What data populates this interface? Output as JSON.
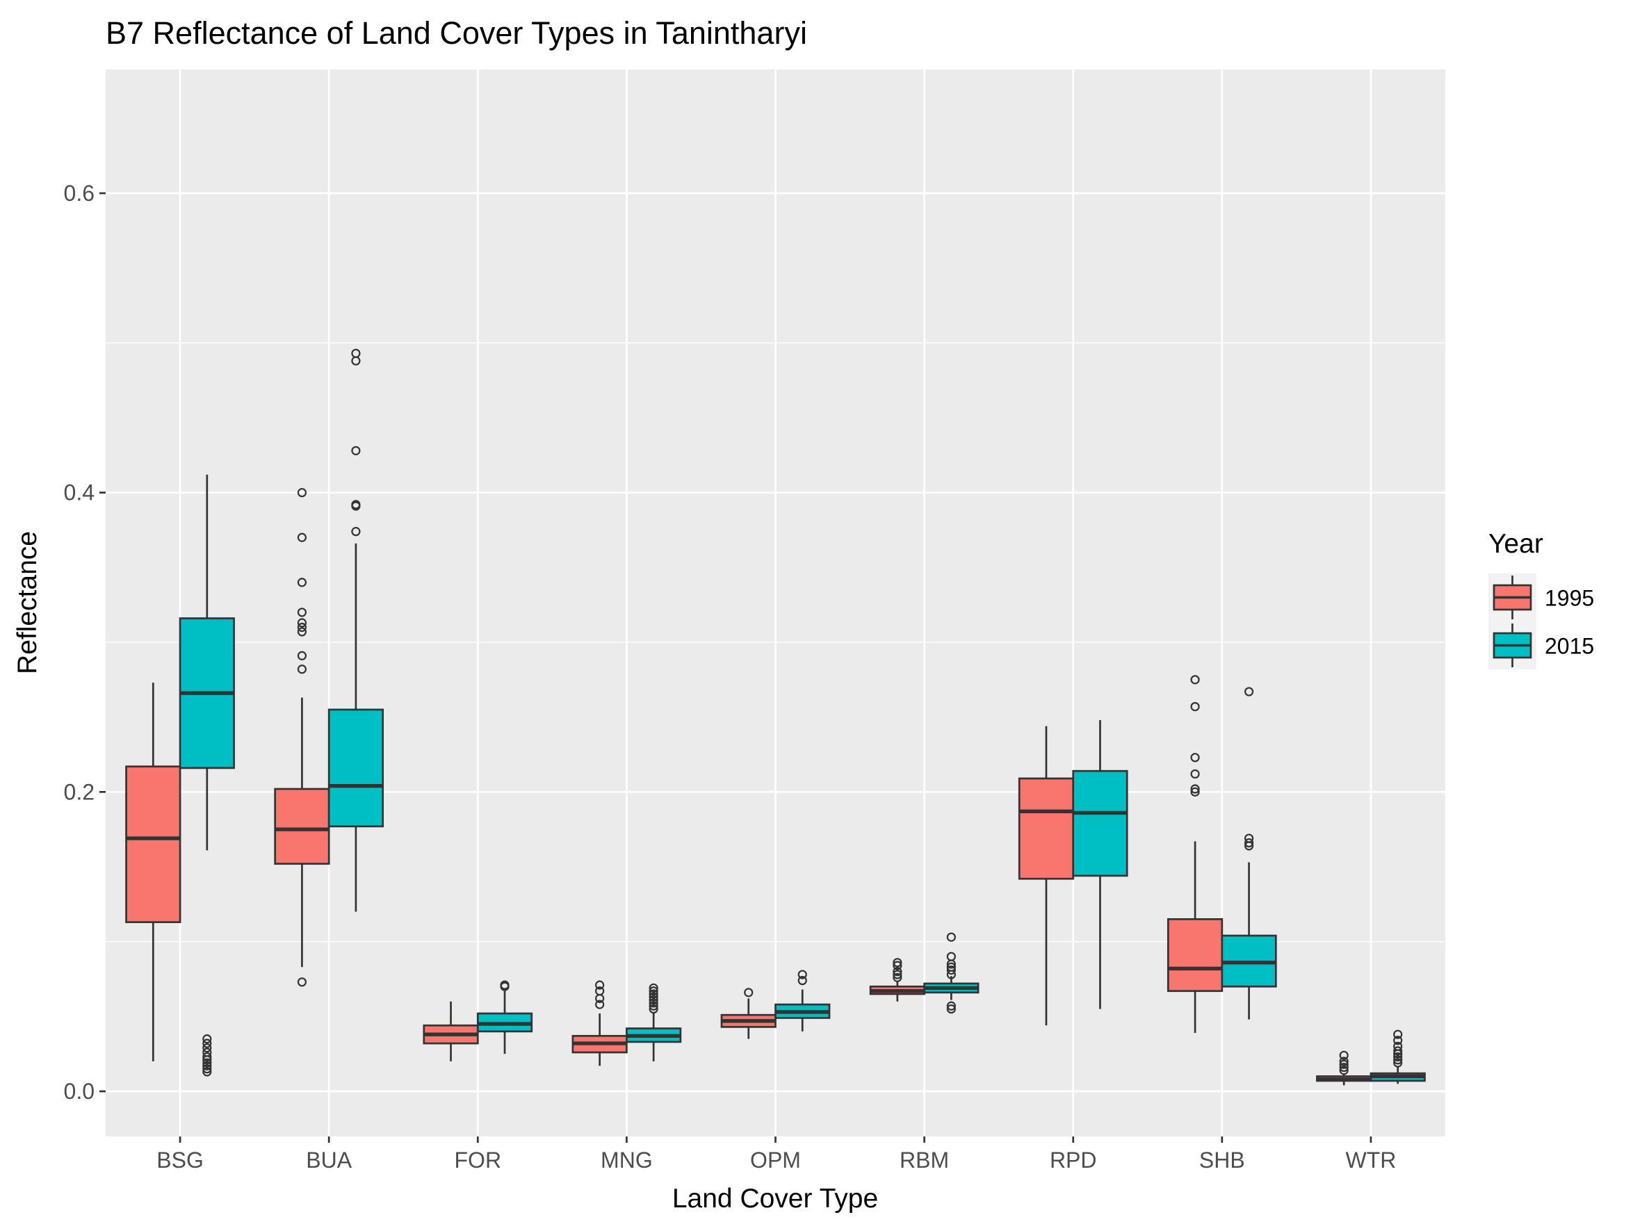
{
  "chart_data": {
    "type": "boxplot",
    "title": "B7 Reflectance of Land Cover Types in Tanintharyi",
    "xlabel": "Land Cover Type",
    "ylabel": "Reflectance",
    "ylim": [
      -0.033,
      0.68
    ],
    "yticks": [
      0.0,
      0.2,
      0.4,
      0.6
    ],
    "ytick_labels": [
      "0.0",
      "0.2",
      "0.4",
      "0.6"
    ],
    "grid": true,
    "legend": {
      "title": "Year",
      "position": "right"
    },
    "categories": [
      "BSG",
      "BUA",
      "FOR",
      "MNG",
      "OPM",
      "RBM",
      "RPD",
      "SHB",
      "WTR"
    ],
    "series": [
      {
        "name": "1995",
        "color": "#F8766D",
        "boxes": [
          {
            "q1": 0.113,
            "median": 0.169,
            "q3": 0.217,
            "low": 0.02,
            "high": 0.273,
            "outliers": []
          },
          {
            "q1": 0.152,
            "median": 0.175,
            "q3": 0.202,
            "low": 0.083,
            "high": 0.263,
            "outliers": [
              0.073,
              0.282,
              0.291,
              0.307,
              0.31,
              0.313,
              0.32,
              0.34,
              0.37,
              0.4
            ]
          },
          {
            "q1": 0.032,
            "median": 0.038,
            "q3": 0.044,
            "low": 0.02,
            "high": 0.06,
            "outliers": []
          },
          {
            "q1": 0.026,
            "median": 0.032,
            "q3": 0.037,
            "low": 0.017,
            "high": 0.052,
            "outliers": [
              0.058,
              0.062,
              0.067,
              0.071
            ]
          },
          {
            "q1": 0.043,
            "median": 0.047,
            "q3": 0.051,
            "low": 0.035,
            "high": 0.062,
            "outliers": [
              0.066
            ]
          },
          {
            "q1": 0.065,
            "median": 0.067,
            "q3": 0.07,
            "low": 0.06,
            "high": 0.073,
            "outliers": [
              0.076,
              0.078,
              0.08,
              0.084,
              0.086
            ]
          },
          {
            "q1": 0.142,
            "median": 0.187,
            "q3": 0.209,
            "low": 0.044,
            "high": 0.244,
            "outliers": []
          },
          {
            "q1": 0.067,
            "median": 0.082,
            "q3": 0.115,
            "low": 0.039,
            "high": 0.167,
            "outliers": [
              0.2,
              0.202,
              0.212,
              0.223,
              0.257,
              0.275
            ]
          },
          {
            "q1": 0.007,
            "median": 0.008,
            "q3": 0.01,
            "low": 0.004,
            "high": 0.012,
            "outliers": [
              0.014,
              0.016,
              0.018,
              0.02,
              0.024
            ]
          }
        ]
      },
      {
        "name": "2015",
        "color": "#00BFC4",
        "boxes": [
          {
            "q1": 0.216,
            "median": 0.266,
            "q3": 0.316,
            "low": 0.161,
            "high": 0.412,
            "outliers": [
              0.013,
              0.015,
              0.017,
              0.019,
              0.021,
              0.023,
              0.026,
              0.029,
              0.032,
              0.035
            ]
          },
          {
            "q1": 0.177,
            "median": 0.204,
            "q3": 0.255,
            "low": 0.12,
            "high": 0.366,
            "outliers": [
              0.374,
              0.391,
              0.392,
              0.428,
              0.488,
              0.493
            ]
          },
          {
            "q1": 0.04,
            "median": 0.045,
            "q3": 0.052,
            "low": 0.025,
            "high": 0.067,
            "outliers": [
              0.07,
              0.071
            ]
          },
          {
            "q1": 0.033,
            "median": 0.037,
            "q3": 0.042,
            "low": 0.02,
            "high": 0.053,
            "outliers": [
              0.055,
              0.057,
              0.059,
              0.061,
              0.063,
              0.065,
              0.067,
              0.069
            ]
          },
          {
            "q1": 0.049,
            "median": 0.053,
            "q3": 0.058,
            "low": 0.04,
            "high": 0.068,
            "outliers": [
              0.074,
              0.078
            ]
          },
          {
            "q1": 0.066,
            "median": 0.069,
            "q3": 0.072,
            "low": 0.061,
            "high": 0.077,
            "outliers": [
              0.055,
              0.057,
              0.078,
              0.081,
              0.083,
              0.085,
              0.09,
              0.103
            ]
          },
          {
            "q1": 0.144,
            "median": 0.186,
            "q3": 0.214,
            "low": 0.055,
            "high": 0.248,
            "outliers": []
          },
          {
            "q1": 0.07,
            "median": 0.086,
            "q3": 0.104,
            "low": 0.048,
            "high": 0.153,
            "outliers": [
              0.164,
              0.166,
              0.169,
              0.267
            ]
          },
          {
            "q1": 0.007,
            "median": 0.01,
            "q3": 0.012,
            "low": 0.005,
            "high": 0.017,
            "outliers": [
              0.019,
              0.021,
              0.023,
              0.025,
              0.027,
              0.03,
              0.034,
              0.038
            ]
          }
        ]
      }
    ]
  }
}
